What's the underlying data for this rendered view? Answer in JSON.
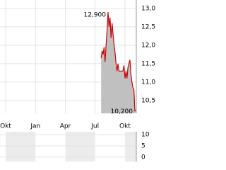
{
  "chart_data": [
    {
      "type": "area",
      "color": "#cc0000",
      "fill": "#c0c0c0",
      "grid": true,
      "x": [
        9.6,
        9.7,
        9.8,
        9.9,
        10.0,
        10.1,
        10.2,
        10.3,
        10.4,
        10.5,
        10.6,
        10.7,
        10.8,
        10.9,
        11.0,
        11.1,
        11.2,
        11.3,
        11.4,
        11.6,
        11.8,
        11.9,
        12.0,
        12.1,
        12.2,
        12.3,
        12.5,
        12.6,
        12.7,
        12.8,
        12.9,
        13.0,
        13.05
      ],
      "values": [
        11.65,
        11.85,
        11.75,
        11.95,
        11.55,
        12.0,
        12.4,
        12.9,
        12.5,
        12.75,
        12.2,
        12.6,
        12.3,
        12.0,
        11.8,
        11.5,
        11.3,
        11.5,
        11.3,
        11.3,
        11.3,
        11.45,
        11.1,
        11.3,
        11.1,
        11.4,
        11.6,
        11.2,
        11.0,
        10.85,
        10.8,
        10.2,
        10.25
      ],
      "xlim": [
        -0.57,
        13.14
      ],
      "xticks": [
        {
          "value": 0,
          "label": "Okt"
        },
        {
          "value": 3,
          "label": "Jan"
        },
        {
          "value": 6,
          "label": "Apr"
        },
        {
          "value": 9,
          "label": "Jul"
        },
        {
          "value": 12,
          "label": "Okt"
        }
      ],
      "ylim": [
        10.15,
        13.23
      ],
      "yticks": [
        {
          "value": 10.5,
          "label": "10,5"
        },
        {
          "value": 11,
          "label": "11,0"
        },
        {
          "value": 11.5,
          "label": "11,5"
        },
        {
          "value": 12,
          "label": "12,0"
        },
        {
          "value": 12.5,
          "label": "12,5"
        },
        {
          "value": 13,
          "label": "13,0"
        }
      ],
      "annotations": [
        {
          "x": 10.3,
          "value": 12.9,
          "label": "12,900"
        },
        {
          "x": 13.0,
          "value": 10.2,
          "label": "10,200"
        }
      ]
    },
    {
      "type": "bar",
      "values": [],
      "ylim": [
        -1.9,
        11.25
      ],
      "yticks": [
        0,
        5,
        10
      ]
    }
  ]
}
